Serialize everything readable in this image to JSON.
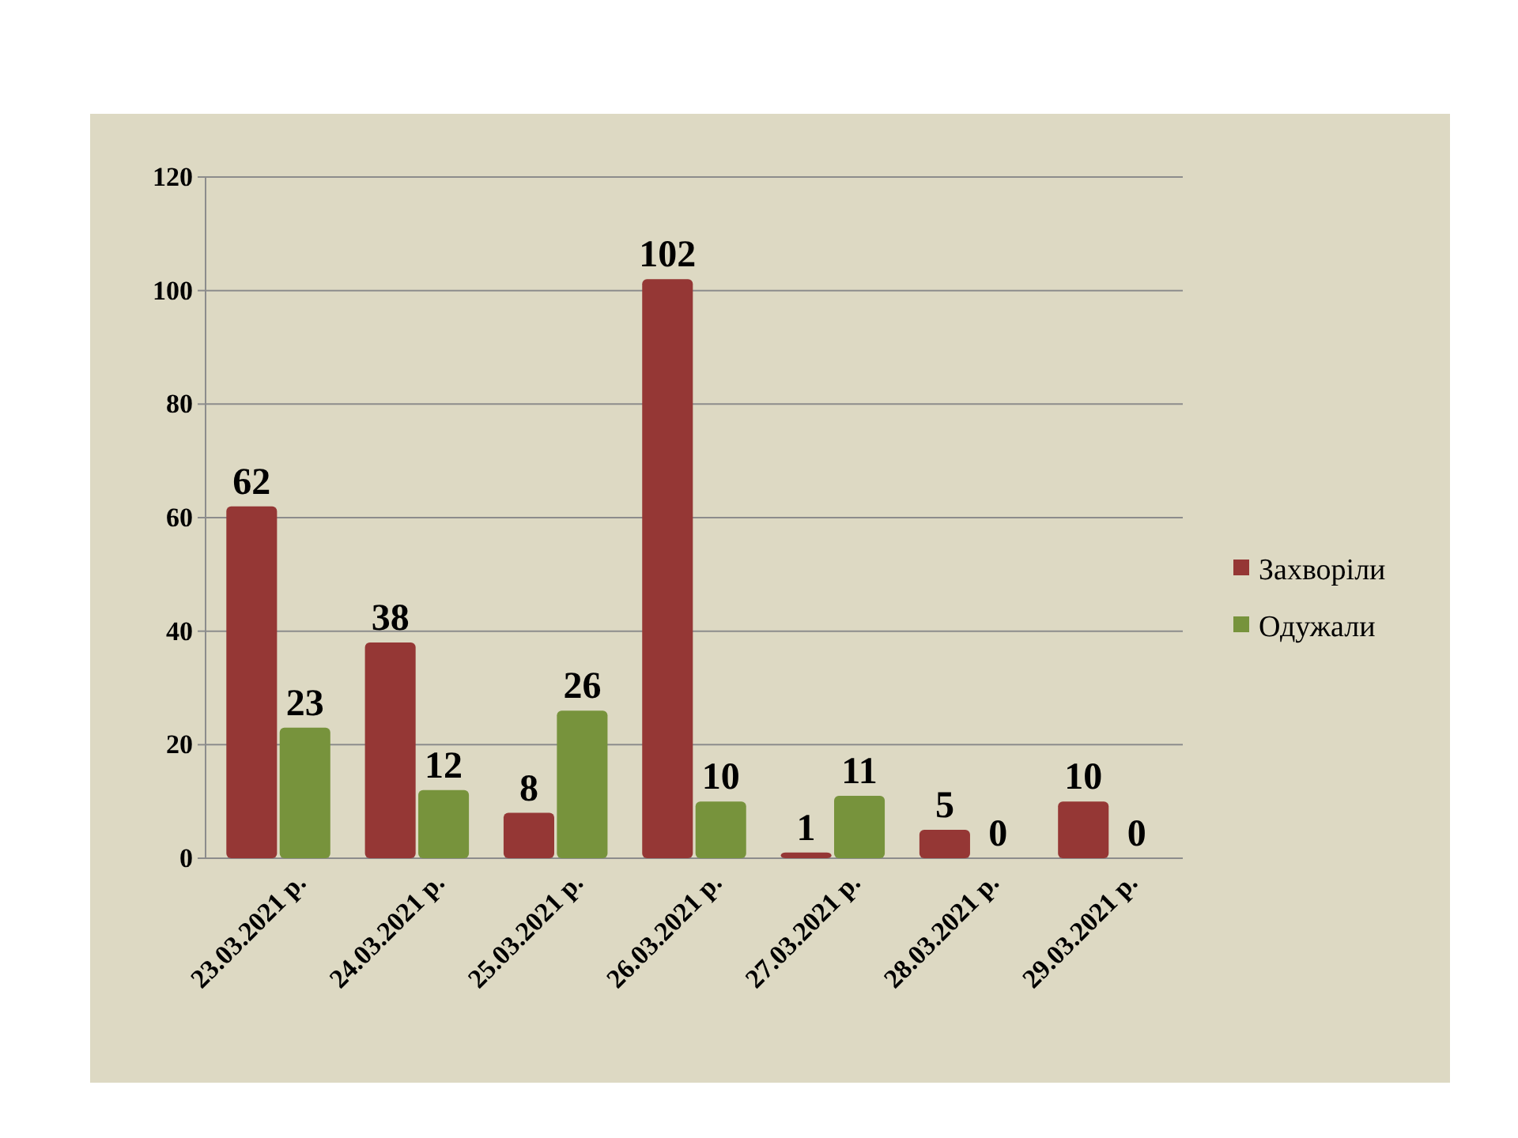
{
  "chart_data": {
    "type": "bar",
    "categories": [
      "23.03.2021 р.",
      "24.03.2021 р.",
      "25.03.2021 р.",
      "26.03.2021 р.",
      "27.03.2021 р.",
      "28.03.2021 р.",
      "29.03.2021 р."
    ],
    "series": [
      {
        "name": "Захворіли",
        "color": "#953735",
        "values": [
          62,
          38,
          8,
          102,
          1,
          5,
          10
        ]
      },
      {
        "name": "Одужали",
        "color": "#77933c",
        "values": [
          23,
          12,
          26,
          10,
          11,
          0,
          0
        ]
      }
    ],
    "ylim": [
      0,
      120
    ],
    "yticks": [
      0,
      20,
      40,
      60,
      80,
      100,
      120
    ],
    "grid": "y",
    "legend": "right",
    "data_labels": true
  }
}
